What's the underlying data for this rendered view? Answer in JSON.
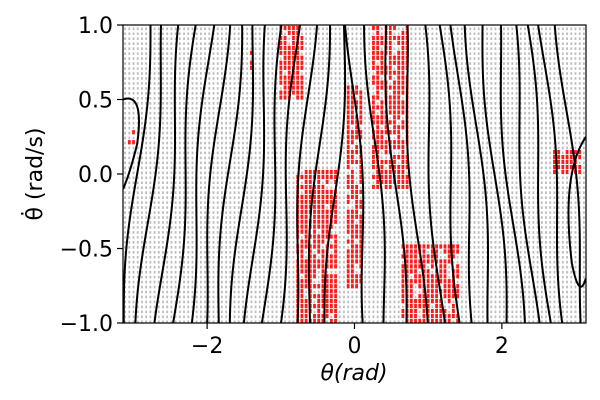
{
  "chart_data": {
    "type": "scatter",
    "xlabel": "θ(rad)",
    "xlabel_italic_part": "θ(rad)",
    "ylabel": "θ̇ (rad/s)",
    "xlim": [
      -3.14159,
      3.14159
    ],
    "ylim": [
      -1.0,
      1.0
    ],
    "x_ticks": [
      {
        "value": -2,
        "label": "−2"
      },
      {
        "value": 0,
        "label": "0"
      },
      {
        "value": 2,
        "label": "2"
      }
    ],
    "y_ticks": [
      {
        "value": 1.0,
        "label": "1.0"
      },
      {
        "value": 0.5,
        "label": "0.5"
      },
      {
        "value": 0.0,
        "label": "0.0"
      },
      {
        "value": -0.5,
        "label": "−0.5"
      },
      {
        "value": -1.0,
        "label": "−1.0"
      }
    ],
    "grid": false,
    "colors": {
      "background_samples": "#bdbdbd",
      "highlight_samples": "#ff1a1a",
      "contours": "#000000"
    },
    "contour_lines_x_at_ydot0": [
      -2.95,
      -2.75,
      -2.5,
      -2.3,
      -2.1,
      -1.9,
      -1.7,
      -1.5,
      -1.3,
      -1.1,
      -0.9,
      -0.7,
      -0.5,
      -0.25,
      0.05,
      0.3,
      0.55,
      0.8,
      1.05,
      1.3,
      1.5,
      1.7,
      1.9,
      2.1,
      2.3,
      2.5,
      2.7,
      2.95
    ],
    "highlight_regions": [
      {
        "x": [
          -3.1,
          -2.95
        ],
        "y": [
          0.2,
          0.3
        ]
      },
      {
        "x": [
          -1.45,
          -1.35
        ],
        "y": [
          0.65,
          0.85
        ]
      },
      {
        "x": [
          -1.05,
          -0.7
        ],
        "y": [
          0.5,
          1.0
        ]
      },
      {
        "x": [
          -0.8,
          -0.2
        ],
        "y": [
          -1.0,
          0.05
        ]
      },
      {
        "x": [
          -0.1,
          0.1
        ],
        "y": [
          -0.75,
          0.6
        ]
      },
      {
        "x": [
          0.2,
          0.75
        ],
        "y": [
          -0.1,
          1.0
        ]
      },
      {
        "x": [
          0.65,
          1.4
        ],
        "y": [
          -1.0,
          -0.45
        ]
      },
      {
        "x": [
          2.7,
          3.1
        ],
        "y": [
          0.0,
          0.15
        ]
      }
    ]
  }
}
